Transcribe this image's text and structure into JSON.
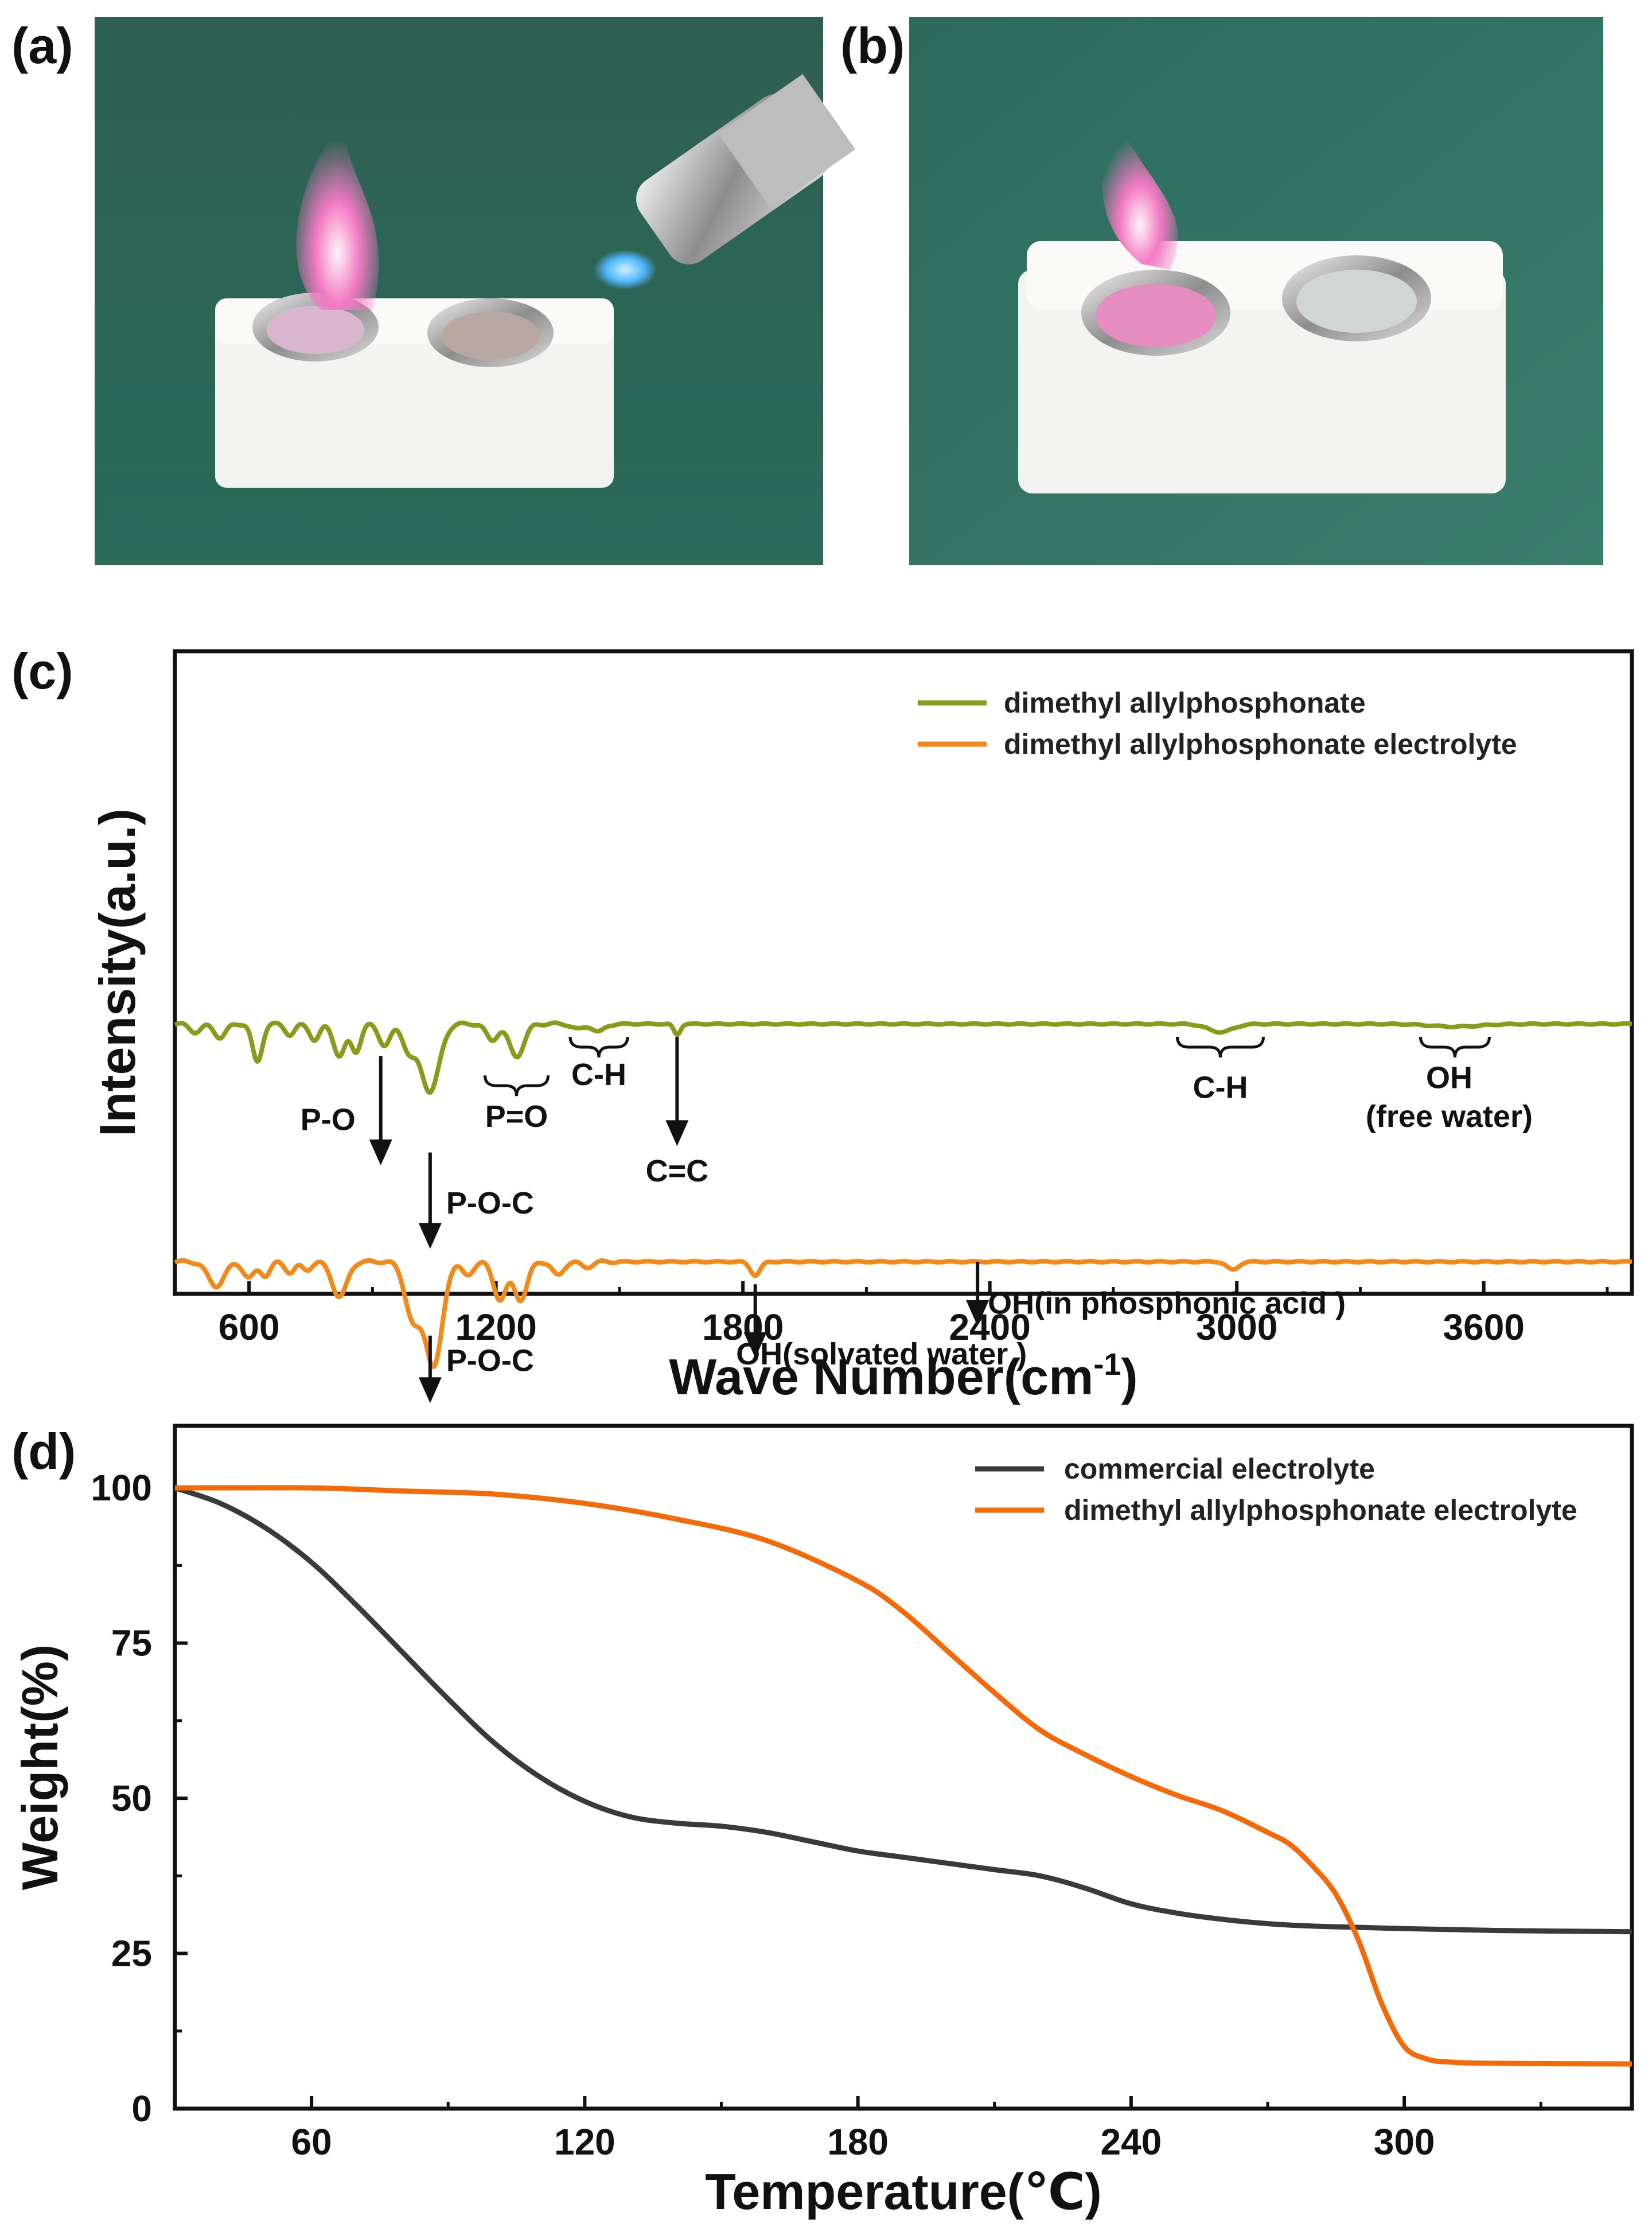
{
  "panels": {
    "a": {
      "label": "(a)"
    },
    "b": {
      "label": "(b)"
    },
    "c": {
      "label": "(c)"
    },
    "d": {
      "label": "(d)"
    }
  },
  "chart_data": [
    {
      "type": "line",
      "panel": "(c)",
      "xlabel": "Wave Number(cm",
      "xlabel_sup": "-1",
      "xlabel_end": ")",
      "ylabel": "Intensity(a.u.)",
      "xlim": [
        420,
        3960
      ],
      "x_ticks": [
        600,
        1200,
        1800,
        2400,
        3000,
        3600
      ],
      "legend": "top-right",
      "series": [
        {
          "name": "dimethyl allylphosphonate",
          "color": "#8a9a1a",
          "baseline": 0.58,
          "dips": [
            {
              "x": 470,
              "depth": 0.03,
              "w": 14
            },
            {
              "x": 530,
              "depth": 0.05,
              "w": 14
            },
            {
              "x": 620,
              "depth": 0.14,
              "w": 12
            },
            {
              "x": 700,
              "depth": 0.04,
              "w": 12
            },
            {
              "x": 760,
              "depth": 0.06,
              "w": 12
            },
            {
              "x": 820,
              "depth": 0.12,
              "w": 14
            },
            {
              "x": 860,
              "depth": 0.1,
              "w": 12
            },
            {
              "x": 930,
              "depth": 0.08,
              "w": 14
            },
            {
              "x": 990,
              "depth": 0.1,
              "w": 16
            },
            {
              "x": 1040,
              "depth": 0.25,
              "w": 22
            },
            {
              "x": 1190,
              "depth": 0.06,
              "w": 14
            },
            {
              "x": 1250,
              "depth": 0.12,
              "w": 18
            },
            {
              "x": 1400,
              "depth": 0.02,
              "w": 14
            },
            {
              "x": 1450,
              "depth": 0.03,
              "w": 14
            },
            {
              "x": 1640,
              "depth": 0.04,
              "w": 8
            },
            {
              "x": 2960,
              "depth": 0.03,
              "w": 30
            },
            {
              "x": 3530,
              "depth": 0.01,
              "w": 60
            }
          ],
          "annotations": [
            {
              "text": "P-O",
              "x": 920,
              "type": "arrow"
            },
            {
              "text": "P-O-C",
              "x": 1040,
              "type": "arrow"
            },
            {
              "text": "P=O",
              "x": 1250,
              "type": "brace"
            },
            {
              "text": "C-H",
              "x": 1450,
              "type": "brace"
            },
            {
              "text": "C=C",
              "x": 1640,
              "type": "arrow"
            },
            {
              "text": "C-H",
              "x": 2960,
              "type": "brace"
            },
            {
              "text": "OH",
              "text2": "(free water)",
              "x": 3530,
              "type": "brace"
            }
          ]
        },
        {
          "name": "dimethyl allylphosphonate electrolyte",
          "color": "#f28a1b",
          "baseline": 0.95,
          "dips": [
            {
              "x": 520,
              "depth": 0.09,
              "w": 20
            },
            {
              "x": 600,
              "depth": 0.06,
              "w": 14
            },
            {
              "x": 640,
              "depth": 0.05,
              "w": 12
            },
            {
              "x": 700,
              "depth": 0.04,
              "w": 12
            },
            {
              "x": 740,
              "depth": 0.03,
              "w": 12
            },
            {
              "x": 820,
              "depth": 0.13,
              "w": 18
            },
            {
              "x": 1000,
              "depth": 0.22,
              "w": 20
            },
            {
              "x": 1050,
              "depth": 0.38,
              "w": 20
            },
            {
              "x": 1130,
              "depth": 0.05,
              "w": 14
            },
            {
              "x": 1210,
              "depth": 0.14,
              "w": 16
            },
            {
              "x": 1260,
              "depth": 0.14,
              "w": 16
            },
            {
              "x": 1350,
              "depth": 0.05,
              "w": 14
            },
            {
              "x": 1420,
              "depth": 0.02,
              "w": 14
            },
            {
              "x": 1830,
              "depth": 0.05,
              "w": 12
            },
            {
              "x": 2990,
              "depth": 0.03,
              "w": 14
            }
          ],
          "annotations": [
            {
              "text": "P-O-C",
              "x": 1050,
              "type": "arrow"
            },
            {
              "text": "OH(solvated water )",
              "x": 1830,
              "type": "arrow"
            },
            {
              "text": "OH(in phosphonic acid )",
              "x": 2370,
              "type": "arrow"
            }
          ]
        }
      ]
    },
    {
      "type": "line",
      "panel": "(d)",
      "xlabel": "Temperature(℃)",
      "ylabel": "Weight(%)",
      "xlim": [
        30,
        350
      ],
      "ylim": [
        0,
        110
      ],
      "x_ticks": [
        60,
        120,
        180,
        240,
        300
      ],
      "y_ticks": [
        0,
        25,
        50,
        75,
        100
      ],
      "legend": "top-right",
      "series": [
        {
          "name": "commercial electrolyte",
          "color": "#3a3a3a",
          "x": [
            30,
            40,
            50,
            60,
            70,
            80,
            90,
            100,
            110,
            120,
            130,
            140,
            150,
            160,
            170,
            180,
            190,
            200,
            210,
            220,
            230,
            240,
            250,
            260,
            270,
            280,
            290,
            300,
            320,
            350
          ],
          "y": [
            100,
            97.5,
            93.5,
            88,
            81,
            73.5,
            66,
            59,
            53.5,
            49.5,
            47,
            46,
            45.5,
            44.5,
            43,
            41.5,
            40.5,
            39.5,
            38.5,
            37.5,
            35.5,
            33,
            31.5,
            30.5,
            29.8,
            29.4,
            29.2,
            29,
            28.7,
            28.5
          ]
        },
        {
          "name": "dimethyl allylphosphonate electrolyte",
          "color": "#f26a0a",
          "x": [
            30,
            60,
            80,
            100,
            120,
            140,
            160,
            180,
            190,
            200,
            210,
            220,
            230,
            240,
            250,
            260,
            270,
            275,
            280,
            285,
            290,
            295,
            300,
            305,
            310,
            320,
            350
          ],
          "y": [
            100,
            100,
            99.5,
            99,
            97.5,
            95,
            91.5,
            85,
            80,
            73.5,
            67,
            61,
            57,
            53.5,
            50.5,
            48,
            44.5,
            42.5,
            39,
            34.5,
            27,
            17,
            10,
            8,
            7.5,
            7.3,
            7.2
          ]
        }
      ]
    }
  ]
}
